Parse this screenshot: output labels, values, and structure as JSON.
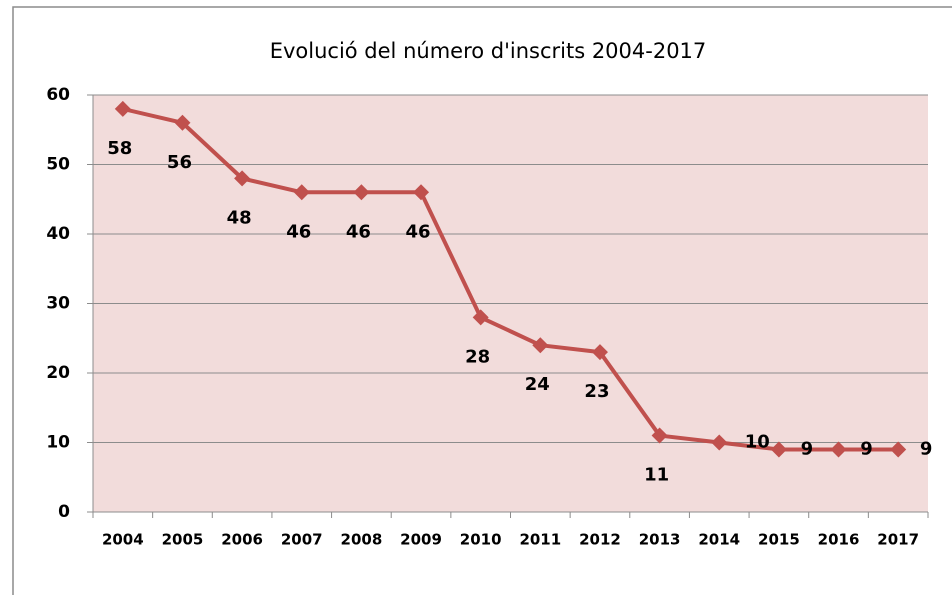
{
  "chart_data": {
    "type": "line",
    "title": "Evolució del número d'inscrits 2004-2017",
    "categories": [
      "2004",
      "2005",
      "2006",
      "2007",
      "2008",
      "2009",
      "2010",
      "2011",
      "2012",
      "2013",
      "2014",
      "2015",
      "2016",
      "2017"
    ],
    "values": [
      58,
      56,
      48,
      46,
      46,
      46,
      28,
      24,
      23,
      11,
      10,
      9,
      9,
      9
    ],
    "color": "#c0504d",
    "ylim": [
      0,
      60
    ],
    "yticks": [
      0,
      10,
      20,
      30,
      40,
      50,
      60
    ],
    "grid": true
  }
}
